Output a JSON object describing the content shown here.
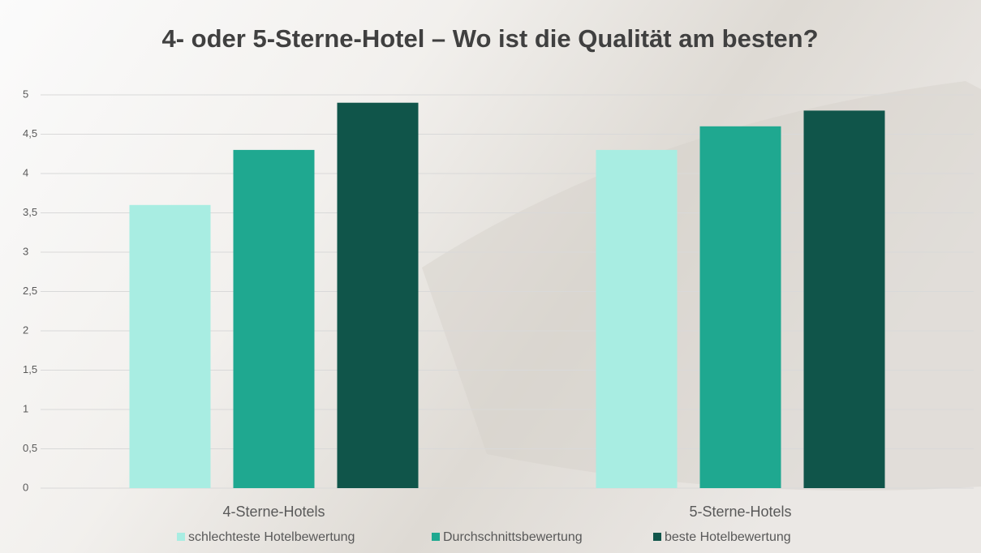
{
  "chart_data": {
    "type": "bar",
    "title": "4- oder 5-Sterne-Hotel – Wo ist die Qualität am besten?",
    "categories": [
      "4-Sterne-Hotels",
      "5-Sterne-Hotels"
    ],
    "series": [
      {
        "name": "schlechteste Hotelbewertung",
        "color": "#a8ede2",
        "values": [
          3.6,
          4.3
        ]
      },
      {
        "name": "Durchschnittsbewertung",
        "color": "#1fa890",
        "values": [
          4.3,
          4.6
        ]
      },
      {
        "name": "beste Hotelbewertung",
        "color": "#10554a",
        "values": [
          4.9,
          4.8
        ]
      }
    ],
    "ylim": [
      0,
      5
    ],
    "yticks": [
      0,
      {
        "value": 0.5,
        "label": "0,5"
      },
      1,
      {
        "value": 1.5,
        "label": "1,5"
      },
      2,
      {
        "value": 2.5,
        "label": "2,5"
      },
      3,
      {
        "value": 3.5,
        "label": "3,5"
      },
      4,
      {
        "value": 4.5,
        "label": "4,5"
      },
      5
    ],
    "grid": true,
    "legend": "bottom"
  }
}
